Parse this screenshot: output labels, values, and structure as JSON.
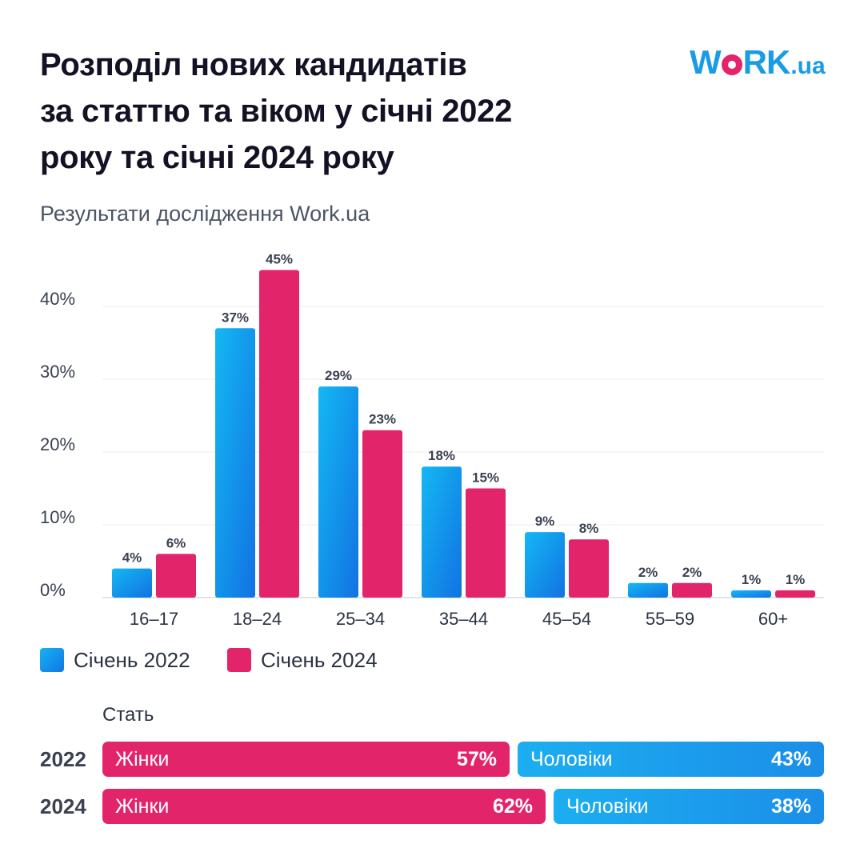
{
  "title_lines": [
    "Розподіл нових кандидатів",
    "за статтю та віком у січні 2022",
    "року та січні 2024 року"
  ],
  "subtitle": "Результати дослідження Work.ua",
  "logo": {
    "part1": "W",
    "part2": "RK",
    "part3": ".ua"
  },
  "colors": {
    "series_2022": "#1a9fea",
    "series_2024": "#e2246a",
    "axis_text": "#3a4150"
  },
  "chart_data": {
    "type": "bar",
    "categories": [
      "16–17",
      "18–24",
      "25–34",
      "35–44",
      "45–54",
      "55–59",
      "60+"
    ],
    "series": [
      {
        "name": "Січень 2022",
        "values": [
          4,
          37,
          29,
          18,
          9,
          2,
          1
        ],
        "labels": [
          "4%",
          "37%",
          "29%",
          "18%",
          "9%",
          "2%",
          "1%"
        ]
      },
      {
        "name": "Січень 2024",
        "values": [
          6,
          45,
          23,
          15,
          8,
          2,
          1
        ],
        "labels": [
          "6%",
          "45%",
          "23%",
          "15%",
          "8%",
          "2%",
          "1%"
        ]
      }
    ],
    "ylim": [
      0,
      45
    ],
    "yticks": [
      0,
      10,
      20,
      30,
      40
    ],
    "ytick_labels": [
      "0%",
      "10%",
      "20%",
      "30%",
      "40%"
    ],
    "grid": true,
    "legend_position": "bottom-left"
  },
  "legend": {
    "label_2022": "Січень 2022",
    "label_2024": "Січень 2024"
  },
  "gender": {
    "title": "Стать",
    "rows": [
      {
        "year": "2022",
        "female_label": "Жінки",
        "female_pct": "57%",
        "female_value": 57,
        "male_label": "Чоловіки",
        "male_pct": "43%",
        "male_value": 43
      },
      {
        "year": "2024",
        "female_label": "Жінки",
        "female_pct": "62%",
        "female_value": 62,
        "male_label": "Чоловіки",
        "male_pct": "38%",
        "male_value": 38
      }
    ]
  }
}
